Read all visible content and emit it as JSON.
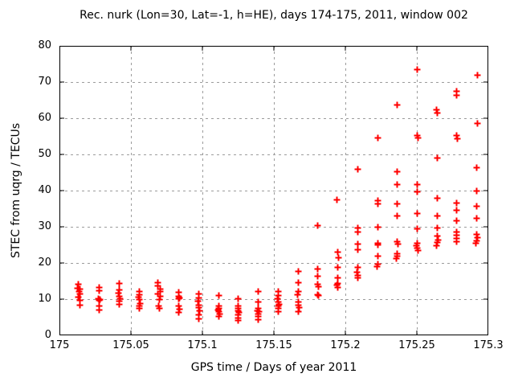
{
  "chart_data": {
    "type": "scatter",
    "title": "Rec. nurk (Lon=30, Lat=-1, h=HE), days 174-175, 2011, window 002",
    "xlabel": "GPS time / Days of year 2011",
    "ylabel": "STEC from uqrg / TECUs",
    "xlim": [
      175,
      175.3
    ],
    "ylim": [
      0,
      80
    ],
    "grid": true,
    "legend": "none",
    "marker": "plus",
    "marker_color": "#ff0000",
    "grid_color": "#9c9c9c",
    "border_color": "#000000",
    "x_tick_values": [
      175,
      175.05,
      175.1,
      175.15,
      175.2,
      175.25,
      175.3
    ],
    "x_tick_labels": [
      "175",
      "175.05",
      "175.1",
      "175.15",
      "175.2",
      "175.25",
      "175.3"
    ],
    "y_tick_values": [
      0,
      10,
      20,
      30,
      40,
      50,
      60,
      70,
      80
    ],
    "y_tick_labels": [
      "0",
      "10",
      "20",
      "30",
      "40",
      "50",
      "60",
      "70",
      "80"
    ],
    "series": [
      {
        "name": "STEC from uqrg",
        "points": [
          [
            175.013,
            14.2
          ],
          [
            175.0125,
            13.1
          ],
          [
            175.0142,
            12.8
          ],
          [
            175.0135,
            12.3
          ],
          [
            175.0138,
            11.5
          ],
          [
            175.0132,
            10.6
          ],
          [
            175.0138,
            9.7
          ],
          [
            175.0142,
            8.5
          ],
          [
            175.0275,
            13.4
          ],
          [
            175.0278,
            12.5
          ],
          [
            175.0272,
            10.3
          ],
          [
            175.0282,
            10.0
          ],
          [
            175.0278,
            9.7
          ],
          [
            175.0278,
            8.2
          ],
          [
            175.0275,
            7.2
          ],
          [
            175.0417,
            14.5
          ],
          [
            175.0417,
            12.7
          ],
          [
            175.0412,
            11.7
          ],
          [
            175.0417,
            10.8
          ],
          [
            175.0422,
            10.2
          ],
          [
            175.0417,
            9.6
          ],
          [
            175.0417,
            8.6
          ],
          [
            175.0556,
            12.3
          ],
          [
            175.0556,
            11.4
          ],
          [
            175.0551,
            10.6
          ],
          [
            175.0556,
            10.1
          ],
          [
            175.0561,
            9.0
          ],
          [
            175.0556,
            8.2
          ],
          [
            175.0556,
            7.6
          ],
          [
            175.0688,
            14.7
          ],
          [
            175.0688,
            13.8
          ],
          [
            175.0702,
            13.0
          ],
          [
            175.0702,
            12.3
          ],
          [
            175.0688,
            11.6
          ],
          [
            175.0702,
            11.0
          ],
          [
            175.0694,
            10.1
          ],
          [
            175.0691,
            8.2
          ],
          [
            175.0697,
            7.6
          ],
          [
            175.0833,
            11.9
          ],
          [
            175.0833,
            10.9
          ],
          [
            175.0838,
            10.5
          ],
          [
            175.0829,
            10.2
          ],
          [
            175.0833,
            8.2
          ],
          [
            175.0838,
            7.3
          ],
          [
            175.0833,
            6.4
          ],
          [
            175.0972,
            11.6
          ],
          [
            175.0972,
            10.4
          ],
          [
            175.0967,
            9.5
          ],
          [
            175.0972,
            8.5
          ],
          [
            175.0972,
            7.7
          ],
          [
            175.0977,
            6.8
          ],
          [
            175.0972,
            5.7
          ],
          [
            175.0972,
            4.6
          ],
          [
            175.1111,
            11.2
          ],
          [
            175.1111,
            8.2
          ],
          [
            175.1111,
            7.6
          ],
          [
            175.1106,
            7.1
          ],
          [
            175.1111,
            6.6
          ],
          [
            175.1116,
            6.0
          ],
          [
            175.1111,
            5.3
          ],
          [
            175.125,
            10.3
          ],
          [
            175.125,
            8.2
          ],
          [
            175.125,
            7.5
          ],
          [
            175.1245,
            6.8
          ],
          [
            175.1255,
            6.5
          ],
          [
            175.125,
            5.8
          ],
          [
            175.125,
            4.9
          ],
          [
            175.125,
            4.2
          ],
          [
            175.1389,
            12.3
          ],
          [
            175.1389,
            9.3
          ],
          [
            175.1389,
            7.5
          ],
          [
            175.1384,
            7.0
          ],
          [
            175.1394,
            6.6
          ],
          [
            175.1389,
            6.0
          ],
          [
            175.1389,
            5.3
          ],
          [
            175.1389,
            4.5
          ],
          [
            175.1528,
            12.3
          ],
          [
            175.1528,
            11.2
          ],
          [
            175.1523,
            10.3
          ],
          [
            175.1528,
            9.3
          ],
          [
            175.1533,
            8.7
          ],
          [
            175.1528,
            8.2
          ],
          [
            175.1528,
            7.5
          ],
          [
            175.1528,
            6.6
          ],
          [
            175.1667,
            17.8
          ],
          [
            175.1667,
            14.7
          ],
          [
            175.1667,
            12.3
          ],
          [
            175.1662,
            11.4
          ],
          [
            175.1667,
            9.3
          ],
          [
            175.1667,
            8.4
          ],
          [
            175.1672,
            7.7
          ],
          [
            175.1667,
            6.7
          ],
          [
            175.1806,
            30.4
          ],
          [
            175.1806,
            18.4
          ],
          [
            175.1806,
            16.5
          ],
          [
            175.1806,
            14.2
          ],
          [
            175.1811,
            13.6
          ],
          [
            175.1801,
            11.4
          ],
          [
            175.1811,
            11.1
          ],
          [
            175.1941,
            37.5
          ],
          [
            175.1944,
            23.1
          ],
          [
            175.1949,
            21.5
          ],
          [
            175.1944,
            19.0
          ],
          [
            175.1944,
            16.0
          ],
          [
            175.1944,
            14.5
          ],
          [
            175.1939,
            14.0
          ],
          [
            175.1944,
            13.4
          ],
          [
            175.2083,
            46.0
          ],
          [
            175.2083,
            29.7
          ],
          [
            175.2083,
            28.7
          ],
          [
            175.2083,
            25.3
          ],
          [
            175.2083,
            23.8
          ],
          [
            175.2083,
            19.0
          ],
          [
            175.2078,
            17.5
          ],
          [
            175.2083,
            16.7
          ],
          [
            175.2083,
            16.0
          ],
          [
            175.2222,
            54.7
          ],
          [
            175.2222,
            37.3
          ],
          [
            175.2222,
            36.5
          ],
          [
            175.2222,
            30.0
          ],
          [
            175.2222,
            25.6
          ],
          [
            175.2227,
            25.1
          ],
          [
            175.2222,
            21.9
          ],
          [
            175.2222,
            19.7
          ],
          [
            175.2217,
            19.2
          ],
          [
            175.2361,
            63.8
          ],
          [
            175.2361,
            45.3
          ],
          [
            175.2361,
            41.7
          ],
          [
            175.2361,
            36.4
          ],
          [
            175.2361,
            33.2
          ],
          [
            175.2361,
            26.0
          ],
          [
            175.2366,
            25.3
          ],
          [
            175.2361,
            22.7
          ],
          [
            175.2361,
            21.9
          ],
          [
            175.2356,
            21.4
          ],
          [
            175.25,
            73.6
          ],
          [
            175.25,
            55.3
          ],
          [
            175.2505,
            54.7
          ],
          [
            175.25,
            41.7
          ],
          [
            175.25,
            39.8
          ],
          [
            175.25,
            33.8
          ],
          [
            175.25,
            29.5
          ],
          [
            175.25,
            25.6
          ],
          [
            175.2495,
            24.9
          ],
          [
            175.25,
            24.2
          ],
          [
            175.2505,
            23.6
          ],
          [
            175.2636,
            62.4
          ],
          [
            175.2639,
            61.6
          ],
          [
            175.2641,
            49.0
          ],
          [
            175.2639,
            37.9
          ],
          [
            175.2639,
            33.2
          ],
          [
            175.2639,
            29.7
          ],
          [
            175.2639,
            27.5
          ],
          [
            175.2644,
            26.5
          ],
          [
            175.2639,
            25.8
          ],
          [
            175.2634,
            25.0
          ],
          [
            175.2778,
            67.6
          ],
          [
            175.2778,
            66.5
          ],
          [
            175.2775,
            55.3
          ],
          [
            175.2781,
            54.5
          ],
          [
            175.2778,
            36.7
          ],
          [
            175.2778,
            34.7
          ],
          [
            175.2778,
            31.7
          ],
          [
            175.2778,
            28.6
          ],
          [
            175.2773,
            27.7
          ],
          [
            175.2778,
            27.0
          ],
          [
            175.2778,
            26.0
          ],
          [
            175.2919,
            71.9
          ],
          [
            175.2921,
            58.7
          ],
          [
            175.2917,
            46.4
          ],
          [
            175.2917,
            40.1
          ],
          [
            175.2917,
            35.8
          ],
          [
            175.2917,
            32.4
          ],
          [
            175.2917,
            28.0
          ],
          [
            175.2922,
            27.1
          ],
          [
            175.2917,
            26.2
          ],
          [
            175.2912,
            25.5
          ]
        ]
      }
    ]
  }
}
